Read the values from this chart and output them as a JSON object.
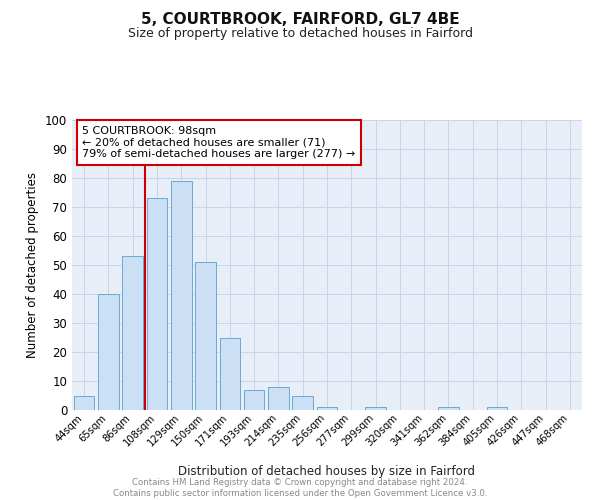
{
  "title": "5, COURTBROOK, FAIRFORD, GL7 4BE",
  "subtitle": "Size of property relative to detached houses in Fairford",
  "xlabel": "Distribution of detached houses by size in Fairford",
  "ylabel": "Number of detached properties",
  "bar_labels": [
    "44sqm",
    "65sqm",
    "86sqm",
    "108sqm",
    "129sqm",
    "150sqm",
    "171sqm",
    "193sqm",
    "214sqm",
    "235sqm",
    "256sqm",
    "277sqm",
    "299sqm",
    "320sqm",
    "341sqm",
    "362sqm",
    "384sqm",
    "405sqm",
    "426sqm",
    "447sqm",
    "468sqm"
  ],
  "bar_values": [
    5,
    40,
    53,
    73,
    79,
    51,
    25,
    7,
    8,
    5,
    1,
    0,
    1,
    0,
    0,
    1,
    0,
    1,
    0,
    0,
    0
  ],
  "bar_color": "#cce0f5",
  "bar_edge_color": "#6aaad4",
  "grid_color": "#c8d4e8",
  "background_color": "#e8eef8",
  "vline_color": "#cc0000",
  "vline_pos": 2.5,
  "annotation_text": "5 COURTBROOK: 98sqm\n← 20% of detached houses are smaller (71)\n79% of semi-detached houses are larger (277) →",
  "annotation_box_color": "#cc0000",
  "footnote": "Contains HM Land Registry data © Crown copyright and database right 2024.\nContains public sector information licensed under the Open Government Licence v3.0.",
  "ylim": [
    0,
    100
  ],
  "yticks": [
    0,
    10,
    20,
    30,
    40,
    50,
    60,
    70,
    80,
    90,
    100
  ]
}
